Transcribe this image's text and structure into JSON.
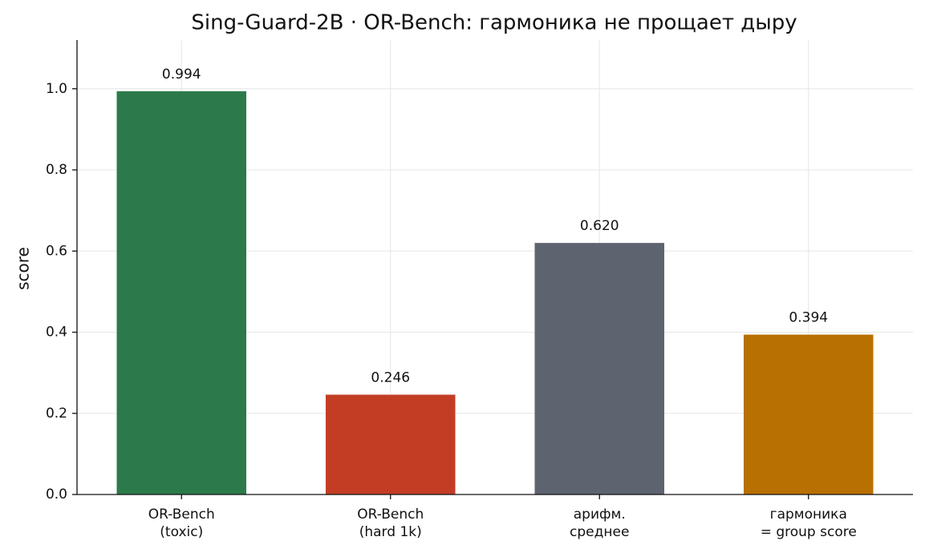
{
  "chart_data": {
    "type": "bar",
    "title": "Sing-Guard-2B · OR-Bench: гармоника не прощает дыру",
    "ylabel": "score",
    "categories": [
      [
        "OR-Bench",
        "(toxic)"
      ],
      [
        "OR-Bench",
        "(hard 1k)"
      ],
      [
        "арифм.",
        "среднее"
      ],
      [
        "гармоника",
        "= group score"
      ]
    ],
    "values": [
      0.994,
      0.246,
      0.62,
      0.394
    ],
    "value_labels": [
      "0.994",
      "0.246",
      "0.620",
      "0.394"
    ],
    "colors": [
      "#2c7a4b",
      "#c33d25",
      "#5d6470",
      "#b87000"
    ],
    "ylim": [
      0,
      1.12
    ],
    "yticks": [
      {
        "value": 0,
        "label": "0.0"
      },
      0.2,
      0.4,
      0.6,
      0.8,
      {
        "value": 1,
        "label": "1.0"
      }
    ],
    "grid": true
  }
}
